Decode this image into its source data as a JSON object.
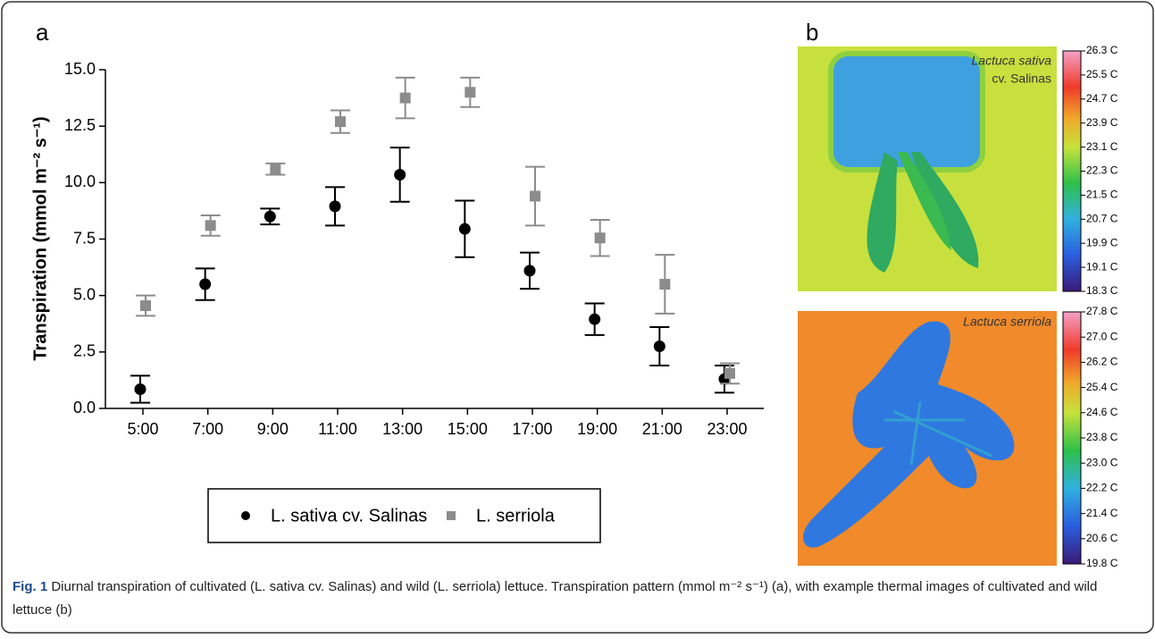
{
  "panel_labels": [
    "a",
    "b"
  ],
  "chart_data": {
    "type": "errorbar",
    "y_label": "Transpiration (mmol m⁻² s⁻¹)",
    "categories": [
      "5:00",
      "7:00",
      "9:00",
      "11:00",
      "13:00",
      "15:00",
      "17:00",
      "19:00",
      "21:00",
      "23:00"
    ],
    "series": [
      {
        "name": "L. sativa cv. Salinas",
        "color": "#000000",
        "marker": "circle",
        "values": [
          0.85,
          5.5,
          8.5,
          8.95,
          10.35,
          7.95,
          6.1,
          3.95,
          2.75,
          1.3
        ],
        "errors": [
          0.6,
          0.7,
          0.35,
          0.85,
          1.2,
          1.25,
          0.8,
          0.7,
          0.85,
          0.6
        ]
      },
      {
        "name": "L. serriola",
        "color": "#8c8c8c",
        "marker": "square",
        "values": [
          4.55,
          8.1,
          10.6,
          12.7,
          13.75,
          14.0,
          9.4,
          7.55,
          5.5,
          1.55
        ],
        "errors": [
          0.45,
          0.45,
          0.25,
          0.5,
          0.9,
          0.65,
          1.3,
          0.8,
          1.3,
          0.45
        ]
      }
    ],
    "ylim": [
      0,
      15
    ],
    "yticks": [
      {
        "value": 0,
        "label": "0.0"
      },
      {
        "value": 2.5,
        "label": "2.5"
      },
      {
        "value": 5,
        "label": "5.0"
      },
      {
        "value": 7.5,
        "label": "7.5"
      },
      {
        "value": 10,
        "label": "10.0"
      },
      {
        "value": 12.5,
        "label": "12.5"
      },
      {
        "value": 15,
        "label": "15.0"
      }
    ]
  },
  "thermal_images": [
    {
      "label_lines": [
        "Lactuca sativa",
        "cv. Salinas"
      ],
      "colorbar_labels": [
        "26.3 C",
        "25.5 C",
        "24.7 C",
        "23.9 C",
        "23.1 C",
        "22.3 C",
        "21.5 C",
        "20.7 C",
        "19.9 C",
        "19.1 C",
        "18.3 C"
      ]
    },
    {
      "label_lines": [
        "Lactuca serriola"
      ],
      "colorbar_labels": [
        "27.8 C",
        "27.0 C",
        "26.2 C",
        "25.4 C",
        "24.6 C",
        "23.8 C",
        "23.0 C",
        "22.2 C",
        "21.4 C",
        "20.6 C",
        "19.8 C"
      ]
    }
  ],
  "caption": {
    "label": "Fig. 1",
    "text": "Diurnal transpiration of cultivated (L. sativa cv. Salinas) and wild (L. serriola) lettuce. Transpiration pattern (mmol m⁻² s⁻¹) (a), with example thermal images of cultivated and wild lettuce (b)"
  }
}
